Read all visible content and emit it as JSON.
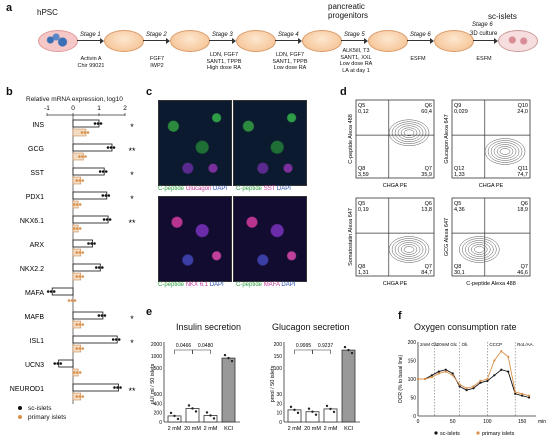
{
  "panel_a": {
    "label": "a",
    "hpsc": "hPSC",
    "pancreatic": "pancreatic",
    "progenitors": "progenitors",
    "scislets": "sc-islets",
    "stages": [
      "Stage 1",
      "Stage 2",
      "Stage 3",
      "Stage 4",
      "Stage 5",
      "Stage 6",
      "Stage 6"
    ],
    "stage6_sub": "3D culture",
    "cond1": [
      "Activin A",
      "Chir 99021"
    ],
    "cond2": [
      "FGF7",
      "IWP2"
    ],
    "cond3": [
      "LDN, FGF7",
      "SANT1, TPPB",
      "High dose RA"
    ],
    "cond4": [
      "LDN, FGF7",
      "SANT1, TPPB",
      "Low dose RA"
    ],
    "cond5": [
      "ALK5iII, T3",
      "SANT1, XXL",
      "Low dose RA",
      "LA at day 1"
    ],
    "cond6": "ESFM",
    "cond7": "ESFM"
  },
  "panel_b": {
    "label": "b",
    "title": "Relative mRNA expression, log10",
    "ticks": [
      "-1",
      "0",
      "1",
      "2"
    ],
    "genes": [
      "INS",
      "GCG",
      "SST",
      "PDX1",
      "NKX6.1",
      "ARX",
      "NKX2.2",
      "MAFA",
      "MAFB",
      "ISL1",
      "UCN3",
      "NEUROD1"
    ],
    "sc_islets": [
      1.0,
      1.5,
      1.2,
      1.3,
      1.35,
      0.75,
      1.05,
      -0.8,
      1.15,
      1.7,
      -0.55,
      1.75
    ],
    "primary_islets": [
      0.5,
      0.4,
      0.3,
      0.2,
      0.2,
      0.3,
      0.3,
      0.0,
      0.3,
      0.3,
      0.2,
      0.3
    ],
    "sig": [
      "*",
      "**",
      "*",
      "*",
      "**",
      "",
      "",
      "",
      "*",
      "*",
      "",
      "**"
    ],
    "legend_sc": "sc-islets",
    "legend_primary": "primary islets",
    "colors": {
      "sc": "#111111",
      "primary": "#d9904a",
      "bar_primary": "#f3dcc2"
    }
  },
  "panel_c": {
    "label": "c",
    "top_left": [
      "C-peptide",
      "Glucagon",
      "DAPI"
    ],
    "top_right": [
      "C-peptide",
      "SST",
      "DAPI"
    ],
    "bot_left": [
      "C-peptide",
      "NKX 6.1",
      "DAPI"
    ],
    "bot_right": [
      "C-peptide",
      "MAFA",
      "DAPI"
    ]
  },
  "panel_d": {
    "label": "d",
    "plots": [
      {
        "ylabel": "C-peptide Alexa 488",
        "xlabel": "CHGA PE",
        "q": [
          [
            "Q5",
            "0,12"
          ],
          [
            "Q6",
            "60,4"
          ],
          [
            "Q8",
            "3,59"
          ],
          [
            "Q7",
            "35,9"
          ]
        ]
      },
      {
        "ylabel": "Glucagon Alexa 647",
        "xlabel": "CHGA PE",
        "q": [
          [
            "Q9",
            "0,029"
          ],
          [
            "Q10",
            "24,0"
          ],
          [
            "Q12",
            "1,33"
          ],
          [
            "Q11",
            "74,7"
          ]
        ]
      },
      {
        "ylabel": "Somatostatin Alexa 647",
        "xlabel": "CHGA PE",
        "q": [
          [
            "Q5",
            "0,19"
          ],
          [
            "Q6",
            "13,8"
          ],
          [
            "Q8",
            "1,31"
          ],
          [
            "Q7",
            "84,7"
          ]
        ]
      },
      {
        "ylabel": "GCG Alexa 647",
        "xlabel": "C-peptide Alexa 488",
        "q": [
          [
            "Q5",
            "4,36"
          ],
          [
            "Q6",
            "18,9"
          ],
          [
            "Q8",
            "30,1"
          ],
          [
            "Q7",
            "46,6"
          ]
        ]
      }
    ]
  },
  "panel_e": {
    "label": "e",
    "insulin": {
      "title": "Insulin secretion",
      "ylabel": "μU/ ml / 50 islets",
      "yticks": [
        "0",
        "200",
        "400",
        "600"
      ],
      "yb_top": [
        "2000",
        "1000",
        "500"
      ],
      "categories": [
        "2 mM",
        "20 mM",
        "2 mM",
        "KCl"
      ],
      "values": [
        130,
        290,
        140,
        560
      ],
      "p1": "0.0466",
      "p2": "0.0480"
    },
    "glucagon": {
      "title": "Glucagon secretion",
      "ylabel": "pmol / 50 islets",
      "yticks": [
        "0",
        "10",
        "20",
        "30"
      ],
      "yb_top": [
        "200",
        "150",
        "100"
      ],
      "categories": [
        "2 mM",
        "20 mM",
        "2 mM",
        "KCl"
      ],
      "values": [
        13,
        11,
        14,
        170
      ],
      "p1": "0.9995",
      "p2": "0.9237"
    }
  },
  "panel_f": {
    "label": "f",
    "title": "Oxygen consumption rate",
    "ylabel": "OCR (% to basal line)",
    "yticks": [
      "0",
      "50",
      "100",
      "150",
      "200"
    ],
    "xticks": [
      "0",
      "50",
      "100",
      "150"
    ],
    "xunit": "min",
    "phases": [
      "2mM Glc",
      "20mM Glc",
      "Oli.",
      "CCCP",
      "Rot./AA."
    ],
    "legend_sc": "sc-islets",
    "legend_primary": "primary islets"
  },
  "chart_data": [
    {
      "type": "bar",
      "title": "Relative mRNA expression, log10",
      "categories": [
        "INS",
        "GCG",
        "SST",
        "PDX1",
        "NKX6.1",
        "ARX",
        "NKX2.2",
        "MAFA",
        "MAFB",
        "ISL1",
        "UCN3",
        "NEUROD1"
      ],
      "series": [
        {
          "name": "sc-islets",
          "values": [
            1.0,
            1.5,
            1.2,
            1.3,
            1.35,
            0.75,
            1.05,
            -0.8,
            1.15,
            1.7,
            -0.55,
            1.75
          ]
        },
        {
          "name": "primary islets",
          "values": [
            0.5,
            0.4,
            0.3,
            0.2,
            0.2,
            0.3,
            0.3,
            0.0,
            0.3,
            0.3,
            0.2,
            0.3
          ]
        }
      ],
      "xlim": [
        -1,
        2
      ]
    },
    {
      "type": "bar",
      "title": "Insulin secretion",
      "categories": [
        "2 mM",
        "20 mM",
        "2 mM",
        "KCl"
      ],
      "values": [
        130,
        290,
        140,
        560
      ],
      "ylabel": "μU/ ml / 50 islets"
    },
    {
      "type": "bar",
      "title": "Glucagon secretion",
      "categories": [
        "2 mM",
        "20 mM",
        "2 mM",
        "KCl"
      ],
      "values": [
        13,
        11,
        14,
        170
      ],
      "ylabel": "pmol / 50 islets"
    },
    {
      "type": "line",
      "title": "Oxygen consumption rate",
      "ylabel": "OCR (% to basal line)",
      "x": [
        0,
        10,
        20,
        30,
        40,
        50,
        60,
        70,
        80,
        90,
        100,
        110,
        120,
        130,
        140,
        150,
        160
      ],
      "series": [
        {
          "name": "sc-islets",
          "values": [
            100,
            100,
            110,
            120,
            125,
            115,
            80,
            70,
            75,
            90,
            95,
            110,
            125,
            120,
            60,
            55,
            50
          ]
        },
        {
          "name": "primary islets",
          "values": [
            100,
            100,
            105,
            115,
            120,
            110,
            85,
            75,
            80,
            95,
            100,
            150,
            175,
            160,
            65,
            60,
            55
          ]
        }
      ],
      "xlim": [
        0,
        170
      ],
      "ylim": [
        0,
        200
      ]
    }
  ]
}
